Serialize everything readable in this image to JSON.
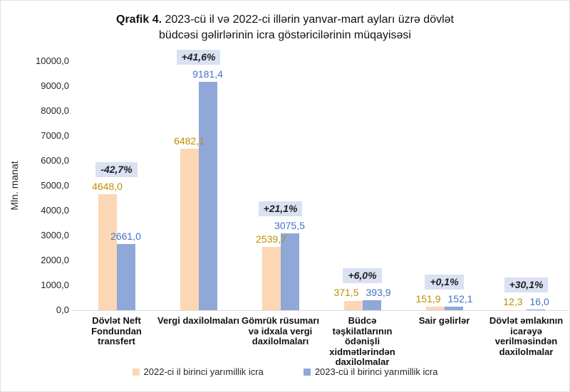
{
  "title": {
    "prefix": "Qrafik 4.",
    "line1_rest": " 2023-cü il və 2022-ci illərin yanvar-mart ayları üzrə dövlət",
    "line2": "büdcəsi gəlirlərinin icra göstəricilərinin müqayisəsi"
  },
  "y_axis": {
    "label": "Mln. manat",
    "tick_values": [
      0,
      1000,
      2000,
      3000,
      4000,
      5000,
      6000,
      7000,
      8000,
      9000,
      10000
    ],
    "tick_labels": [
      "0,0",
      "1000,0",
      "2000,0",
      "3000,0",
      "4000,0",
      "5000,0",
      "6000,0",
      "7000,0",
      "8000,0",
      "9000,0",
      "10000,0"
    ]
  },
  "chart_data": {
    "type": "bar",
    "title": "Qrafik 4. 2023-cü il və 2022-ci illərin yanvar-mart ayları üzrə dövlət büdcəsi gəlirlərinin icra göstəricilərinin müqayisəsi",
    "ylabel": "Mln. manat",
    "ylim": [
      0,
      10000
    ],
    "grid": false,
    "legend_position": "bottom",
    "categories": [
      "Dövlət Neft Fondundan transfert",
      "Vergi daxilolmaları",
      "Gömrük rüsumarı və idxala vergi daxilolmaları",
      "Büdcə təşkilatlarının ödənişli xidmətlərindən daxilolmalar",
      "Sair gəlirlər",
      "Dövlət əmlakının icarəyə verilməsindən daxilolmalar"
    ],
    "series": [
      {
        "name": "2022-ci il birinci yarımillik icra",
        "color": "#FCD7B6",
        "label_color": "#BF8F00",
        "values": [
          4648.0,
          6482.1,
          2539.7,
          371.5,
          151.9,
          12.3
        ],
        "value_labels": [
          "4648,0",
          "6482,1",
          "2539,7",
          "371,5",
          "151,9",
          "12,3"
        ]
      },
      {
        "name": "2023-cü il birinci yarımillik icra",
        "color": "#8FA8D8",
        "label_color": "#4472C4",
        "values": [
          2661.0,
          9181.4,
          3075.5,
          393.9,
          152.1,
          16.0
        ],
        "value_labels": [
          "2661,0",
          "9181,4",
          "3075,5",
          "393,9",
          "152,1",
          "16,0"
        ]
      }
    ],
    "change_badges": [
      "-42,7%",
      "+41,6%",
      "+21,1%",
      "+6,0%",
      "+0,1%",
      "+30,1%"
    ],
    "badge_style": {
      "background": "#D9E1F2",
      "text_color": "#202020"
    },
    "axis_line_color": "#D9D9D9"
  }
}
